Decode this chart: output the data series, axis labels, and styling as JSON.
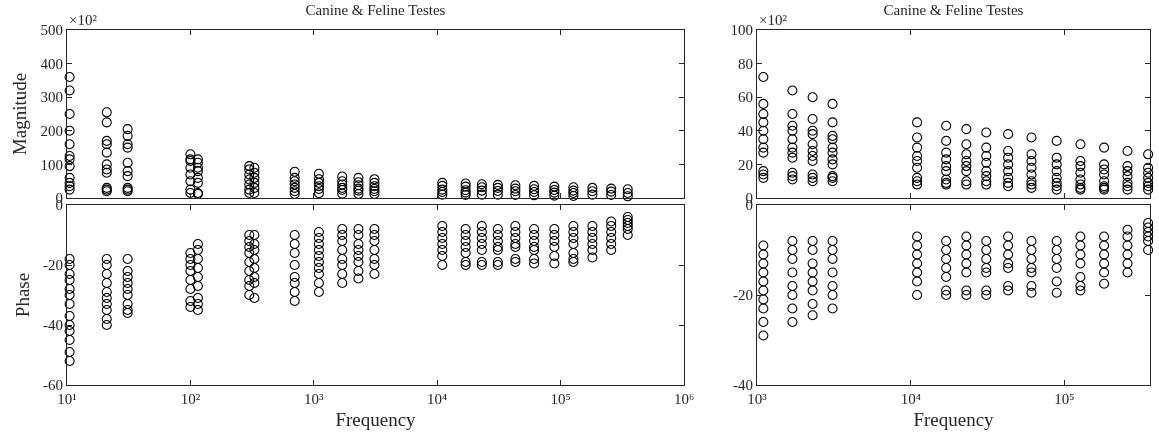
{
  "chart_data": [
    {
      "type": "scatter",
      "title": "Canine & Feline Testes",
      "ylabel": "Magnitude",
      "annotations": [
        "×10²"
      ],
      "log": "x",
      "marker": "circle",
      "tick_labels": "y",
      "xlim": [
        10,
        1000000
      ],
      "xticks": [
        {
          "value": 10,
          "label": null
        },
        {
          "value": 100,
          "label": null
        },
        {
          "value": 1000,
          "label": null
        },
        {
          "value": 10000,
          "label": null
        },
        {
          "value": 100000,
          "label": null
        },
        {
          "value": 1000000,
          "label": null
        }
      ],
      "ylim": [
        0,
        500
      ],
      "yticks": [
        0,
        100,
        200,
        300,
        400,
        500
      ],
      "series": [
        {
          "color": "#000000",
          "x": [
            10.5,
            10.5,
            10.5,
            10.5,
            10.5,
            10.5,
            10.5,
            10.5,
            10.5,
            10.5,
            10.5,
            10.5,
            21,
            21,
            21,
            21,
            21,
            21,
            21,
            21,
            21,
            21,
            21,
            31,
            31,
            31,
            31,
            31,
            31,
            31,
            31,
            31,
            31,
            100,
            100,
            100,
            100,
            100,
            100,
            100,
            100,
            115,
            115,
            115,
            115,
            115,
            115,
            115,
            115,
            300,
            300,
            300,
            300,
            300,
            300,
            300,
            330,
            330,
            330,
            330,
            330,
            330,
            700,
            700,
            700,
            700,
            700,
            700,
            700,
            1100,
            1100,
            1100,
            1100,
            1100,
            1100,
            1700,
            1700,
            1700,
            1700,
            1700,
            1700,
            2300,
            2300,
            2300,
            2300,
            2300,
            2300,
            3100,
            3100,
            3100,
            3100,
            3100,
            3100,
            11000,
            11000,
            11000,
            11000,
            11000,
            17000,
            17000,
            17000,
            17000,
            17000,
            23000,
            23000,
            23000,
            23000,
            31000,
            31000,
            31000,
            31000,
            43000,
            43000,
            43000,
            43000,
            61000,
            61000,
            61000,
            61000,
            89000,
            89000,
            89000,
            89000,
            127000,
            127000,
            127000,
            127000,
            181000,
            181000,
            181000,
            257000,
            257000,
            257000,
            350000,
            350000,
            350000
          ],
          "values": [
            360,
            320,
            250,
            200,
            160,
            125,
            115,
            95,
            60,
            45,
            35,
            25,
            255,
            225,
            170,
            160,
            135,
            100,
            85,
            75,
            30,
            25,
            20,
            205,
            185,
            160,
            150,
            105,
            80,
            65,
            30,
            25,
            20,
            130,
            115,
            110,
            90,
            70,
            50,
            25,
            15,
            115,
            105,
            90,
            80,
            60,
            45,
            15,
            12,
            95,
            85,
            70,
            55,
            40,
            25,
            15,
            90,
            75,
            60,
            45,
            30,
            15,
            78,
            60,
            50,
            40,
            30,
            20,
            12,
            72,
            56,
            45,
            35,
            27,
            14,
            64,
            50,
            40,
            30,
            24,
            13,
            60,
            47,
            38,
            28,
            22,
            12,
            56,
            45,
            35,
            27,
            20,
            12,
            45,
            36,
            25,
            18,
            10,
            43,
            34,
            23,
            16,
            9,
            41,
            32,
            22,
            10,
            39,
            30,
            21,
            10,
            38,
            28,
            20,
            9,
            36,
            26,
            18,
            8,
            34,
            24,
            16,
            7,
            32,
            22,
            15,
            6,
            30,
            20,
            10,
            28,
            19,
            9,
            26,
            15,
            5
          ]
        }
      ]
    },
    {
      "type": "scatter",
      "xlabel": "Frequency",
      "ylabel": "Phase",
      "log": "x",
      "marker": "circle",
      "xlim": [
        10,
        1000000
      ],
      "xticks": [
        {
          "value": 10,
          "label": "10¹"
        },
        {
          "value": 100,
          "label": "10²"
        },
        {
          "value": 1000,
          "label": "10³"
        },
        {
          "value": 10000,
          "label": "10⁴"
        },
        {
          "value": 100000,
          "label": "10⁵"
        },
        {
          "value": 1000000,
          "label": "10⁶"
        }
      ],
      "ylim": [
        -60,
        0
      ],
      "yticks": [
        -60,
        -40,
        -20,
        0
      ],
      "series": [
        {
          "color": "#000000",
          "x": [
            10.5,
            10.5,
            10.5,
            10.5,
            10.5,
            10.5,
            10.5,
            10.5,
            10.5,
            10.5,
            10.5,
            10.5,
            10.5,
            21,
            21,
            21,
            21,
            21,
            21,
            21,
            21,
            21,
            21,
            31,
            31,
            31,
            31,
            31,
            31,
            31,
            31,
            31,
            100,
            100,
            100,
            100,
            100,
            100,
            100,
            100,
            115,
            115,
            115,
            115,
            115,
            115,
            115,
            115,
            115,
            300,
            300,
            300,
            300,
            300,
            300,
            300,
            300,
            300,
            330,
            330,
            330,
            330,
            330,
            330,
            330,
            330,
            700,
            700,
            700,
            700,
            700,
            700,
            700,
            700,
            1100,
            1100,
            1100,
            1100,
            1100,
            1100,
            1100,
            1100,
            1100,
            1100,
            1700,
            1700,
            1700,
            1700,
            1700,
            1700,
            1700,
            1700,
            2300,
            2300,
            2300,
            2300,
            2300,
            2300,
            2300,
            2300,
            3100,
            3100,
            3100,
            3100,
            3100,
            3100,
            3100,
            11000,
            11000,
            11000,
            11000,
            11000,
            11000,
            11000,
            17000,
            17000,
            17000,
            17000,
            17000,
            17000,
            17000,
            23000,
            23000,
            23000,
            23000,
            23000,
            23000,
            23000,
            31000,
            31000,
            31000,
            31000,
            31000,
            31000,
            31000,
            43000,
            43000,
            43000,
            43000,
            43000,
            43000,
            43000,
            61000,
            61000,
            61000,
            61000,
            61000,
            61000,
            61000,
            89000,
            89000,
            89000,
            89000,
            89000,
            89000,
            127000,
            127000,
            127000,
            127000,
            127000,
            127000,
            127000,
            181000,
            181000,
            181000,
            181000,
            181000,
            181000,
            257000,
            257000,
            257000,
            257000,
            257000,
            257000,
            350000,
            350000,
            350000,
            350000,
            350000,
            350000
          ],
          "values": [
            -18,
            -20,
            -23,
            -25,
            -28,
            -30,
            -33,
            -37,
            -40,
            -42,
            -45,
            -49,
            -52,
            -18,
            -20,
            -23,
            -26,
            -29,
            -31,
            -33,
            -35,
            -38,
            -40,
            -18,
            -22,
            -24,
            -26,
            -28,
            -30,
            -33,
            -35,
            -36,
            -16,
            -18,
            -20,
            -22,
            -25,
            -28,
            -32,
            -34,
            -13,
            -15,
            -18,
            -21,
            -24,
            -27,
            -31,
            -33,
            -35,
            -10,
            -12,
            -14,
            -16,
            -19,
            -22,
            -25,
            -27,
            -30,
            -10,
            -13,
            -15,
            -18,
            -21,
            -24,
            -26,
            -31,
            -10,
            -13,
            -16,
            -20,
            -24,
            -26,
            -29,
            -32,
            -9,
            -11,
            -13,
            -15,
            -17,
            -19,
            -21,
            -23,
            -26,
            -29,
            -8,
            -10,
            -12,
            -15,
            -18,
            -20,
            -23,
            -26,
            -8,
            -10,
            -13,
            -15,
            -17,
            -19,
            -22,
            -24.5,
            -8,
            -10,
            -12,
            -15,
            -18,
            -20,
            -23,
            -7,
            -9,
            -11,
            -13,
            -15,
            -17,
            -20,
            -8,
            -10,
            -12,
            -14,
            -16,
            -19,
            -20,
            -7,
            -9,
            -11,
            -13,
            -15,
            -19,
            -20,
            -8,
            -10,
            -12,
            -14,
            -15,
            -19,
            -20,
            -7,
            -9,
            -11,
            -13,
            -14,
            -18,
            -19,
            -8,
            -10,
            -12,
            -14,
            -15,
            -18,
            -19.5,
            -8,
            -10,
            -12,
            -14,
            -17,
            -19.5,
            -7,
            -9,
            -11,
            -13,
            -16,
            -18,
            -19,
            -7,
            -9,
            -11,
            -13,
            -15,
            -17.5,
            -5.5,
            -7,
            -9,
            -11,
            -13,
            -15,
            -4,
            -5,
            -6,
            -7,
            -8,
            -10
          ]
        }
      ]
    },
    {
      "type": "scatter",
      "title": "Canine & Feline Testes",
      "annotations": [
        "×10²"
      ],
      "log": "x",
      "marker": "circle",
      "tick_labels": "y",
      "xlim": [
        1000,
        360000
      ],
      "xticks": [
        {
          "value": 1000,
          "label": null
        },
        {
          "value": 10000,
          "label": null
        },
        {
          "value": 100000,
          "label": null
        }
      ],
      "ylim": [
        0,
        100
      ],
      "yticks": [
        0,
        20,
        40,
        60,
        80,
        100
      ],
      "series": [
        {
          "color": "#000000",
          "x": [
            1100,
            1100,
            1100,
            1100,
            1100,
            1100,
            1100,
            1100,
            1100,
            1100,
            1100,
            1700,
            1700,
            1700,
            1700,
            1700,
            1700,
            1700,
            1700,
            1700,
            1700,
            1700,
            2300,
            2300,
            2300,
            2300,
            2300,
            2300,
            2300,
            2300,
            2300,
            2300,
            2300,
            3100,
            3100,
            3100,
            3100,
            3100,
            3100,
            3100,
            3100,
            3100,
            3100,
            3100,
            11000,
            11000,
            11000,
            11000,
            11000,
            11000,
            11000,
            11000,
            11000,
            17000,
            17000,
            17000,
            17000,
            17000,
            17000,
            17000,
            17000,
            17000,
            23000,
            23000,
            23000,
            23000,
            23000,
            23000,
            23000,
            23000,
            31000,
            31000,
            31000,
            31000,
            31000,
            31000,
            31000,
            31000,
            43000,
            43000,
            43000,
            43000,
            43000,
            43000,
            43000,
            43000,
            61000,
            61000,
            61000,
            61000,
            61000,
            61000,
            61000,
            61000,
            89000,
            89000,
            89000,
            89000,
            89000,
            89000,
            89000,
            89000,
            127000,
            127000,
            127000,
            127000,
            127000,
            127000,
            127000,
            127000,
            181000,
            181000,
            181000,
            181000,
            181000,
            181000,
            181000,
            181000,
            257000,
            257000,
            257000,
            257000,
            257000,
            257000,
            257000,
            350000,
            350000,
            350000,
            350000,
            350000,
            350000,
            350000
          ],
          "values": [
            72,
            56,
            50,
            45,
            40,
            35,
            30,
            27,
            16,
            14,
            12,
            64,
            50,
            43,
            40,
            35,
            30,
            27,
            24,
            15,
            13,
            11,
            60,
            47,
            40,
            38,
            32,
            28,
            25,
            22,
            14,
            12,
            10,
            56,
            45,
            37,
            35,
            30,
            27,
            23,
            20,
            13,
            12,
            10,
            45,
            36,
            30,
            25,
            22,
            18,
            12,
            10,
            8,
            43,
            34,
            27,
            23,
            19,
            16,
            11,
            9,
            8,
            41,
            32,
            26,
            22,
            19,
            16,
            10,
            8,
            39,
            30,
            25,
            21,
            16,
            13,
            10,
            8,
            38,
            28,
            24,
            20,
            16,
            12,
            9,
            7,
            36,
            26,
            22,
            18,
            14,
            10,
            8,
            6,
            34,
            24,
            20,
            16,
            12,
            9,
            7,
            5,
            32,
            22,
            19,
            15,
            11,
            8,
            6,
            5,
            30,
            20,
            17,
            14,
            10,
            7,
            6,
            5,
            28,
            19,
            16,
            13,
            9,
            7,
            5,
            26,
            18,
            15,
            12,
            9,
            7,
            5
          ]
        }
      ]
    },
    {
      "type": "scatter",
      "xlabel": "Frequency",
      "log": "x",
      "marker": "circle",
      "xlim": [
        1000,
        360000
      ],
      "xticks": [
        {
          "value": 1000,
          "label": "10³"
        },
        {
          "value": 10000,
          "label": "10⁴"
        },
        {
          "value": 100000,
          "label": "10⁵"
        }
      ],
      "ylim": [
        -40,
        0
      ],
      "yticks": [
        -40,
        -20,
        0
      ],
      "series": [
        {
          "color": "#000000",
          "x": [
            1100,
            1100,
            1100,
            1100,
            1100,
            1100,
            1100,
            1100,
            1100,
            1100,
            1700,
            1700,
            1700,
            1700,
            1700,
            1700,
            1700,
            1700,
            2300,
            2300,
            2300,
            2300,
            2300,
            2300,
            2300,
            2300,
            3100,
            3100,
            3100,
            3100,
            3100,
            3100,
            3100,
            11000,
            11000,
            11000,
            11000,
            11000,
            11000,
            11000,
            17000,
            17000,
            17000,
            17000,
            17000,
            17000,
            17000,
            23000,
            23000,
            23000,
            23000,
            23000,
            23000,
            23000,
            31000,
            31000,
            31000,
            31000,
            31000,
            31000,
            31000,
            43000,
            43000,
            43000,
            43000,
            43000,
            43000,
            43000,
            61000,
            61000,
            61000,
            61000,
            61000,
            61000,
            61000,
            89000,
            89000,
            89000,
            89000,
            89000,
            89000,
            127000,
            127000,
            127000,
            127000,
            127000,
            127000,
            127000,
            181000,
            181000,
            181000,
            181000,
            181000,
            181000,
            257000,
            257000,
            257000,
            257000,
            257000,
            257000,
            350000,
            350000,
            350000,
            350000,
            350000,
            350000
          ],
          "values": [
            -9,
            -11,
            -13,
            -15,
            -17,
            -19,
            -21,
            -23,
            -26,
            -29,
            -8,
            -10,
            -12,
            -15,
            -18,
            -20,
            -23,
            -26,
            -8,
            -10,
            -13,
            -15,
            -17,
            -19,
            -22,
            -24.5,
            -8,
            -10,
            -12,
            -15,
            -18,
            -20,
            -23,
            -7,
            -9,
            -11,
            -13,
            -15,
            -17,
            -20,
            -8,
            -10,
            -12,
            -14,
            -16,
            -19,
            -20,
            -7,
            -9,
            -11,
            -13,
            -15,
            -19,
            -20,
            -8,
            -10,
            -12,
            -14,
            -15,
            -19,
            -20,
            -7,
            -9,
            -11,
            -13,
            -14,
            -18,
            -19,
            -8,
            -10,
            -12,
            -14,
            -15,
            -18,
            -19.5,
            -8,
            -10,
            -12,
            -14,
            -17,
            -19.5,
            -7,
            -9,
            -11,
            -13,
            -16,
            -18,
            -19,
            -7,
            -9,
            -11,
            -13,
            -15,
            -17.5,
            -5.5,
            -7,
            -9,
            -11,
            -13,
            -15,
            -4,
            -5,
            -6,
            -7,
            -8,
            -10
          ]
        }
      ]
    }
  ]
}
